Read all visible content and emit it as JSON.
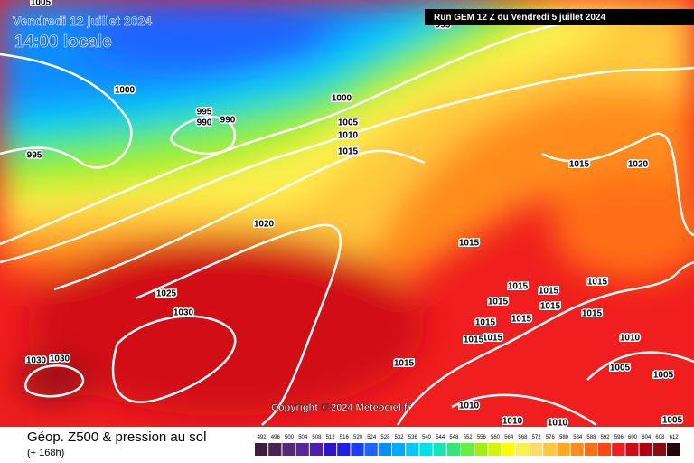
{
  "header": {
    "date": "Vendredi 12 juillet 2024",
    "time": "14:00 locale",
    "run": "Run GEM 12 Z du Vendredi 5 juillet 2024"
  },
  "copyright": "Copyright © 2024 Meteociel.fr",
  "footer": {
    "title": "Géop. Z500 & pression au sol",
    "subtitle": "(+ 168h)"
  },
  "isobar_labels": [
    "1005",
    "995",
    "1000",
    "995",
    "990",
    "990",
    "995",
    "1000",
    "1005",
    "1010",
    "1015",
    "1020",
    "1025",
    "1030",
    "1030",
    "1030",
    "1015",
    "1020",
    "1015",
    "1015",
    "1015",
    "1015",
    "1015",
    "1015",
    "1015",
    "1015",
    "1015",
    "1015",
    "1015",
    "1010",
    "1015",
    "1005",
    "1005",
    "1010",
    "1010",
    "1010",
    "1005"
  ],
  "legend": {
    "labels": [
      492,
      496,
      500,
      504,
      508,
      512,
      516,
      520,
      524,
      528,
      532,
      536,
      540,
      544,
      548,
      552,
      556,
      560,
      564,
      568,
      572,
      576,
      580,
      584,
      588,
      592,
      596,
      600,
      604,
      608,
      612
    ],
    "colors": [
      "#3c1e3c",
      "#4b2350",
      "#5a2873",
      "#5a2896",
      "#4b1eb4",
      "#2d14c8",
      "#1e1ee6",
      "#1e3cff",
      "#1e64ff",
      "#0a8cff",
      "#00aaff",
      "#00c8ff",
      "#00e1e6",
      "#14e6b4",
      "#32e678",
      "#64f03c",
      "#a0f014",
      "#d2f50a",
      "#ffff00",
      "#fff050",
      "#ffdc64",
      "#ffc83c",
      "#ffaa1e",
      "#ff8c1e",
      "#ff6e14",
      "#ff4614",
      "#f01e1e",
      "#d20a14",
      "#b40014",
      "#8c0a14",
      "#1e0a0a"
    ]
  }
}
